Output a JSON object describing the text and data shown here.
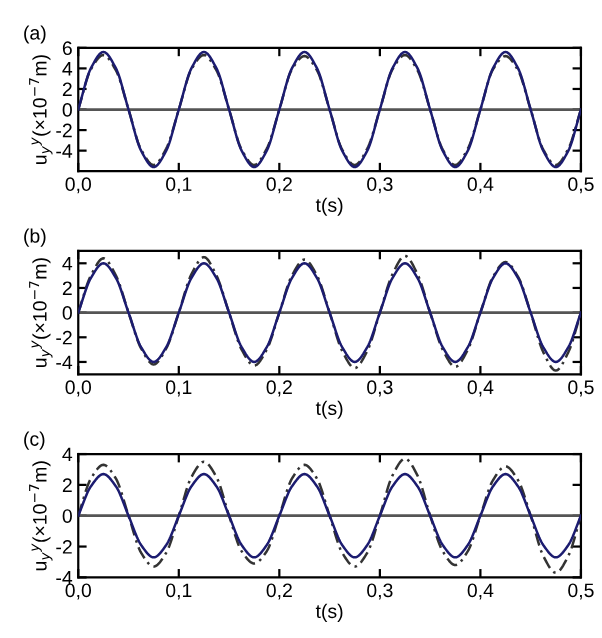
{
  "chart_data": [
    {
      "type": "line",
      "title": "(a)",
      "xlabel": "t(s)",
      "ylabel": "u$_{y}$$^{y}$(×10$^{−7}$m)",
      "x": [
        0,
        0.0125,
        0.025,
        0.0375,
        0.05,
        0.0625,
        0.075,
        0.0875,
        0.1,
        0.1125,
        0.125,
        0.1375,
        0.15,
        0.1625,
        0.175,
        0.1875,
        0.2,
        0.2125,
        0.225,
        0.2375,
        0.25,
        0.2625,
        0.275,
        0.2875,
        0.3,
        0.3125,
        0.325,
        0.3375,
        0.35,
        0.3625,
        0.375,
        0.3875,
        0.4,
        0.4125,
        0.425,
        0.4375,
        0.45,
        0.4625,
        0.475,
        0.4875,
        0.5
      ],
      "series": [
        {
          "color": "#1c1c70",
          "line_style": "solid",
          "values": [
            0,
            4.0,
            5.6,
            4.0,
            0,
            -4.0,
            -5.6,
            -4.0,
            0,
            4.0,
            5.6,
            4.0,
            0,
            -4.0,
            -5.6,
            -4.0,
            0,
            4.0,
            5.6,
            4.0,
            0,
            -4.0,
            -5.6,
            -4.0,
            0,
            4.0,
            5.6,
            4.0,
            0,
            -4.0,
            -5.6,
            -4.0,
            0,
            4.0,
            5.6,
            4.0,
            0,
            -4.0,
            -5.6,
            -4.0,
            0
          ]
        },
        {
          "color": "#333333",
          "line_style": "dashed",
          "values": [
            0,
            3.9,
            5.3,
            3.8,
            0,
            -3.9,
            -5.4,
            -3.8,
            0,
            3.9,
            5.3,
            3.8,
            0,
            -3.9,
            -5.4,
            -3.8,
            0,
            3.9,
            5.2,
            3.8,
            0,
            -3.9,
            -5.4,
            -3.8,
            0,
            3.9,
            5.3,
            3.8,
            0,
            -3.9,
            -5.4,
            -3.8,
            0,
            3.9,
            5.2,
            3.8,
            0,
            -3.9,
            -5.4,
            -3.8,
            0
          ]
        }
      ],
      "xlim": [
        0,
        0.5
      ],
      "xticks": [
        {
          "value": 0,
          "label": "0,0"
        },
        {
          "value": 0.1,
          "label": "0,1"
        },
        {
          "value": 0.2,
          "label": "0,2"
        },
        {
          "value": 0.3,
          "label": "0,3"
        },
        {
          "value": 0.4,
          "label": "0,4"
        },
        {
          "value": 0.5,
          "label": "0,5"
        }
      ],
      "ylim": [
        -6,
        6
      ],
      "yticks": [
        -4,
        -2,
        0,
        2,
        4,
        6
      ],
      "ref_lines": [
        {
          "axis": "y",
          "value": 0,
          "color": "#555555"
        }
      ],
      "grid": false,
      "marker": "none"
    },
    {
      "type": "line",
      "title": "(b)",
      "xlabel": "t(s)",
      "ylabel": "u$_{y}$$^{y}$(×10$^{−7}$m)",
      "x": [
        0,
        0.0125,
        0.025,
        0.0375,
        0.05,
        0.0625,
        0.075,
        0.0875,
        0.1,
        0.1125,
        0.125,
        0.1375,
        0.15,
        0.1625,
        0.175,
        0.1875,
        0.2,
        0.2125,
        0.225,
        0.2375,
        0.25,
        0.2625,
        0.275,
        0.2875,
        0.3,
        0.3125,
        0.325,
        0.3375,
        0.35,
        0.3625,
        0.375,
        0.3875,
        0.4,
        0.4125,
        0.425,
        0.4375,
        0.45,
        0.4625,
        0.475,
        0.4875,
        0.5
      ],
      "series": [
        {
          "color": "#1c1c70",
          "line_style": "solid",
          "values": [
            0,
            2.8,
            4.0,
            2.8,
            0,
            -2.8,
            -4.0,
            -2.8,
            0,
            2.8,
            4.0,
            2.8,
            0,
            -2.8,
            -4.0,
            -2.8,
            0,
            2.8,
            4.0,
            2.8,
            0,
            -2.8,
            -4.0,
            -2.8,
            0,
            2.8,
            4.0,
            2.8,
            0,
            -2.8,
            -4.0,
            -2.8,
            0,
            2.8,
            4.0,
            2.8,
            0,
            -2.8,
            -4.0,
            -2.8,
            0
          ]
        },
        {
          "color": "#333333",
          "line_style": "dashed",
          "values": [
            0,
            3.0,
            4.4,
            3.0,
            0,
            -2.9,
            -4.2,
            -2.9,
            0,
            3.1,
            4.5,
            3.0,
            0,
            -3.0,
            -4.3,
            -3.0,
            0,
            3.0,
            4.3,
            3.0,
            0,
            -3.1,
            -4.5,
            -3.1,
            0,
            3.1,
            4.6,
            3.1,
            0,
            -3.0,
            -4.4,
            -3.0,
            0,
            2.9,
            4.1,
            2.9,
            0,
            -3.2,
            -4.7,
            -3.2,
            0
          ]
        }
      ],
      "xlim": [
        0,
        0.5
      ],
      "xticks": [
        {
          "value": 0,
          "label": "0,0"
        },
        {
          "value": 0.1,
          "label": "0,1"
        },
        {
          "value": 0.2,
          "label": "0,2"
        },
        {
          "value": 0.3,
          "label": "0,3"
        },
        {
          "value": 0.4,
          "label": "0,4"
        },
        {
          "value": 0.5,
          "label": "0,5"
        }
      ],
      "ylim": [
        -5,
        5
      ],
      "yticks": [
        -4,
        -2,
        0,
        2,
        4
      ],
      "ref_lines": [
        {
          "axis": "y",
          "value": 0,
          "color": "#555555"
        }
      ],
      "grid": false,
      "marker": "none"
    },
    {
      "type": "line",
      "title": "(c)",
      "xlabel": "t(s)",
      "ylabel": "u$_{y}$$^{y}$(×10$^{−7}$m)",
      "x": [
        0,
        0.0125,
        0.025,
        0.0375,
        0.05,
        0.0625,
        0.075,
        0.0875,
        0.1,
        0.1125,
        0.125,
        0.1375,
        0.15,
        0.1625,
        0.175,
        0.1875,
        0.2,
        0.2125,
        0.225,
        0.2375,
        0.25,
        0.2625,
        0.275,
        0.2875,
        0.3,
        0.3125,
        0.325,
        0.3375,
        0.35,
        0.3625,
        0.375,
        0.3875,
        0.4,
        0.4125,
        0.425,
        0.4375,
        0.45,
        0.4625,
        0.475,
        0.4875,
        0.5
      ],
      "series": [
        {
          "color": "#1c1c70",
          "line_style": "solid",
          "values": [
            0,
            1.9,
            2.7,
            1.9,
            0,
            -1.9,
            -2.7,
            -1.9,
            0,
            1.9,
            2.7,
            1.9,
            0,
            -1.9,
            -2.7,
            -1.9,
            0,
            1.9,
            2.7,
            1.9,
            0,
            -1.9,
            -2.7,
            -1.9,
            0,
            1.9,
            2.7,
            1.9,
            0,
            -1.9,
            -2.7,
            -1.9,
            0,
            1.9,
            2.7,
            1.9,
            0,
            -1.9,
            -2.7,
            -1.9,
            0
          ]
        },
        {
          "color": "#333333",
          "line_style": "dashed",
          "values": [
            0,
            2.4,
            3.3,
            2.4,
            0,
            -2.4,
            -3.3,
            -2.4,
            0,
            2.5,
            3.5,
            2.5,
            0,
            -2.3,
            -3.1,
            -2.3,
            0,
            2.4,
            3.3,
            2.4,
            0,
            -2.4,
            -3.3,
            -2.4,
            0,
            2.6,
            3.7,
            2.6,
            0,
            -2.3,
            -3.2,
            -2.3,
            0,
            2.3,
            3.2,
            2.3,
            0,
            -2.6,
            -3.7,
            -2.6,
            0
          ]
        }
      ],
      "xlim": [
        0,
        0.5
      ],
      "xticks": [
        {
          "value": 0,
          "label": "0,0"
        },
        {
          "value": 0.1,
          "label": "0,1"
        },
        {
          "value": 0.2,
          "label": "0,2"
        },
        {
          "value": 0.3,
          "label": "0,3"
        },
        {
          "value": 0.4,
          "label": "0,4"
        },
        {
          "value": 0.5,
          "label": "0,5"
        }
      ],
      "ylim": [
        -4,
        4
      ],
      "yticks": [
        -4,
        -2,
        0,
        2,
        4
      ],
      "ref_lines": [
        {
          "axis": "y",
          "value": 0,
          "color": "#555555"
        }
      ],
      "grid": false,
      "marker": "none"
    }
  ]
}
